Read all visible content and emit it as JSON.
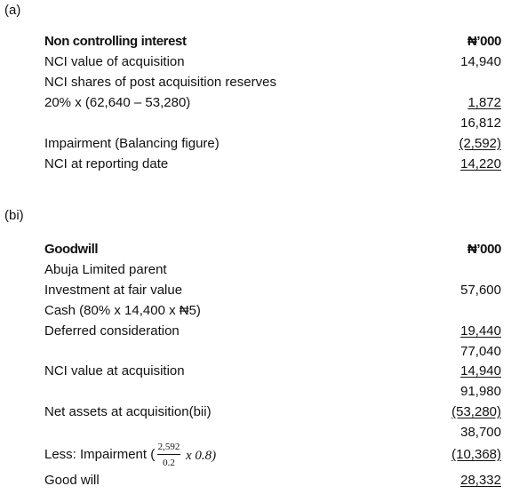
{
  "section_a": {
    "label": "(a)",
    "rows": [
      {
        "label": "Non controlling interest",
        "amount": "₦’000"
      },
      {
        "label": "NCI value of acquisition",
        "amount": "14,940"
      },
      {
        "label": "NCI shares of post acquisition reserves"
      },
      {
        "label": "20% x (62,640 – 53,280)",
        "amount": "1,872",
        "underlined": true
      },
      {
        "amount": "16,812"
      },
      {
        "label": "Impairment (Balancing figure)",
        "amount": "(2,592)",
        "underlined": true
      },
      {
        "label": "NCI at reporting date",
        "amount": "14,220",
        "underlined": true
      }
    ]
  },
  "section_bi": {
    "label": "(bi)",
    "rows": [
      {
        "label": "Goodwill",
        "amount": "₦’000"
      },
      {
        "label": "Abuja Limited parent"
      },
      {
        "label": "Investment at fair value",
        "amount": "57,600"
      },
      {
        "label": "Cash (80% x 14,400 x ₦5)"
      },
      {
        "label": "Deferred consideration",
        "amount": "19,440",
        "underlined": true
      },
      {
        "amount": "77,040"
      },
      {
        "label": "NCI value at acquisition",
        "amount": "14,940",
        "underlined": true
      },
      {
        "amount": "91,980"
      },
      {
        "label": "Net assets at acquisition(bii)",
        "amount": "(53,280)",
        "underlined": true
      },
      {
        "amount": "38,700"
      },
      {
        "label": "Less: Impairment (",
        "fraction": {
          "numerator": "2,592",
          "denominator": "0.2"
        },
        "label_tail": "x 0.8)",
        "amount": "(10,368)",
        "underlined": true
      },
      {
        "label": "Good will",
        "amount": "28,332",
        "underlined": true
      }
    ]
  }
}
